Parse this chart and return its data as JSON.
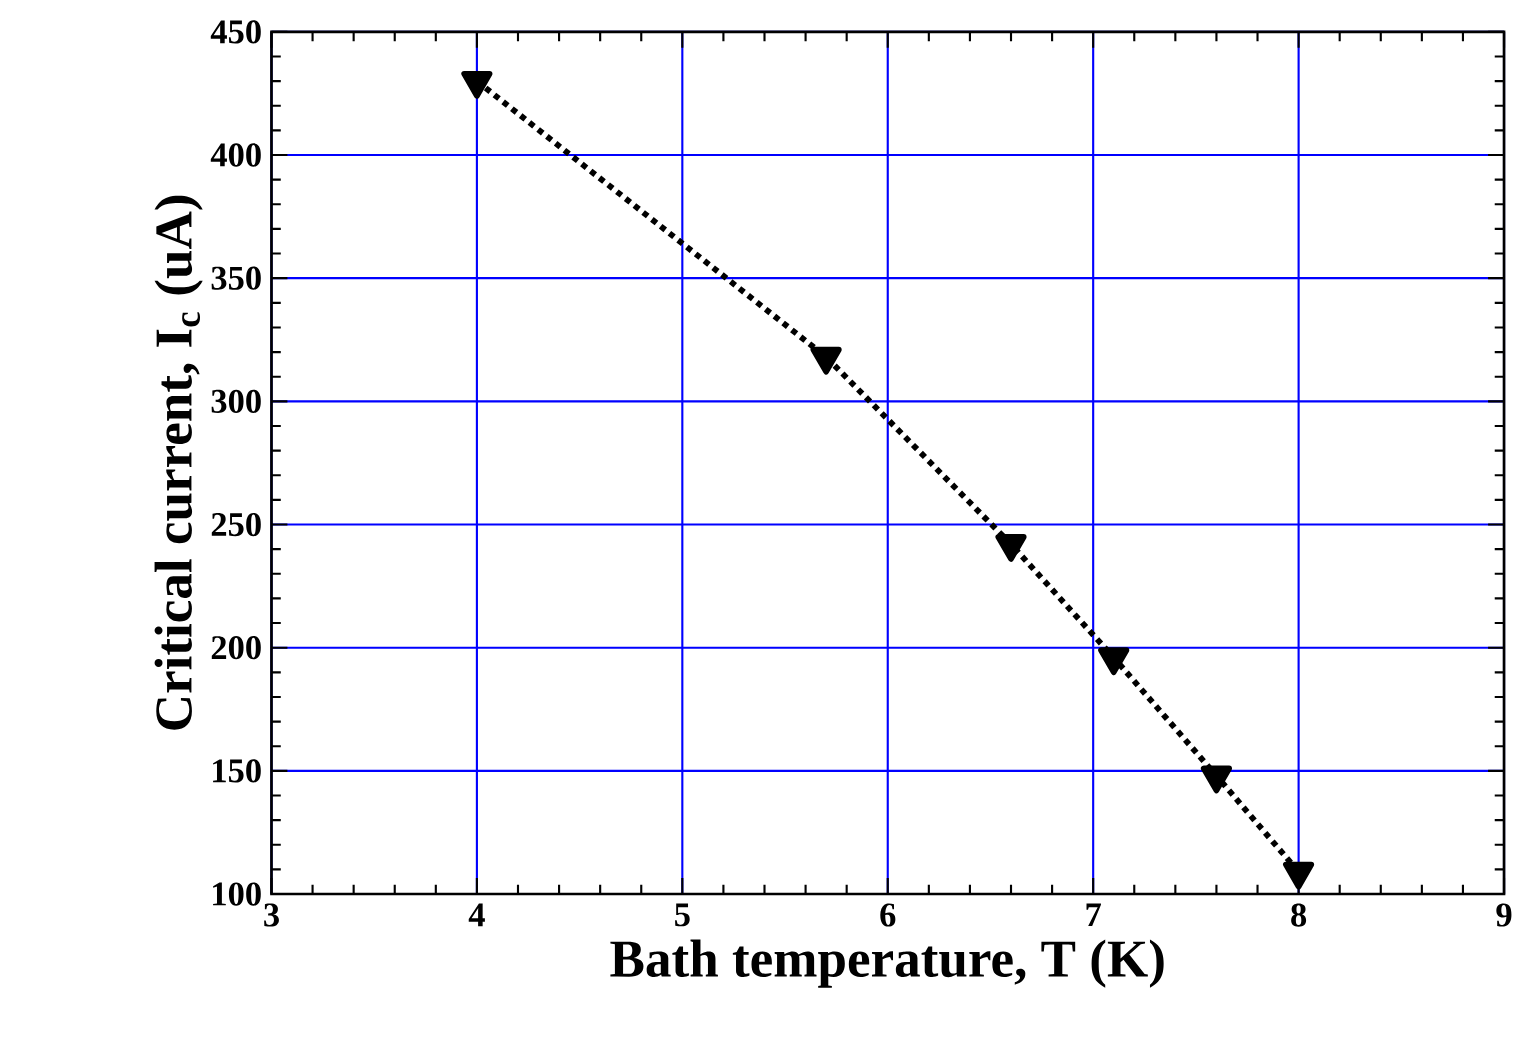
{
  "chart_data": {
    "type": "line",
    "xlabel": "Bath temperature, T (K)",
    "ylabel": "Critical current,  I$_{c}$ (uA)",
    "x": [
      4,
      5.7,
      6.6,
      7.1,
      7.6,
      8
    ],
    "series": [
      {
        "color": "#000000",
        "values": [
          430,
          318,
          242,
          196,
          148,
          109
        ]
      }
    ],
    "xlim": [
      3,
      9
    ],
    "xticks": [
      3,
      4,
      5,
      6,
      7,
      8,
      9
    ],
    "ylim": [
      100,
      450
    ],
    "yticks": [
      100,
      150,
      200,
      250,
      300,
      350,
      400,
      450
    ],
    "grid": true,
    "marker": "triangle",
    "line_style": "dotted"
  }
}
